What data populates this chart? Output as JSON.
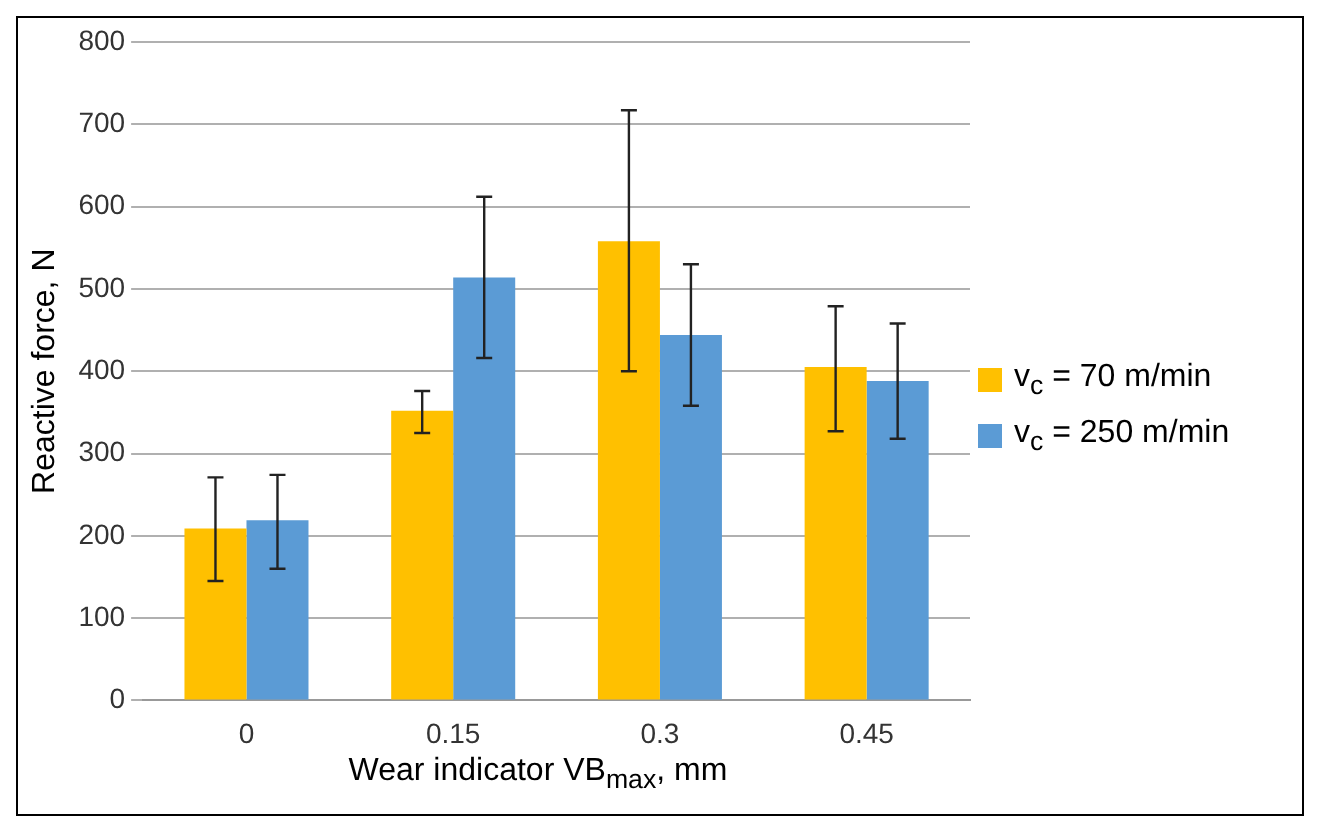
{
  "chart_data": {
    "type": "bar",
    "xlabel": "Wear indicator VB$_{max}$, mm",
    "ylabel": "Reactive force, N",
    "categories": [
      "0",
      "0.15",
      "0.3",
      "0.45"
    ],
    "series": [
      {
        "name": "v$_{c}$ = 70 m/min",
        "color": "#ffc000",
        "values": [
          209,
          352,
          558,
          405
        ],
        "errors": [
          [
            145,
            271
          ],
          [
            325,
            376
          ],
          [
            400,
            717
          ],
          [
            327,
            479
          ]
        ]
      },
      {
        "name": "v$_{c}$ = 250 m/min",
        "color": "#5b9bd5",
        "values": [
          219,
          514,
          444,
          388
        ],
        "errors": [
          [
            160,
            274
          ],
          [
            416,
            612
          ],
          [
            358,
            530
          ],
          [
            318,
            458
          ]
        ]
      }
    ],
    "ylim": [
      0,
      800
    ],
    "yticks": [
      0,
      100,
      200,
      300,
      400,
      500,
      600,
      700,
      800
    ],
    "grid": "y",
    "legend": "right"
  }
}
